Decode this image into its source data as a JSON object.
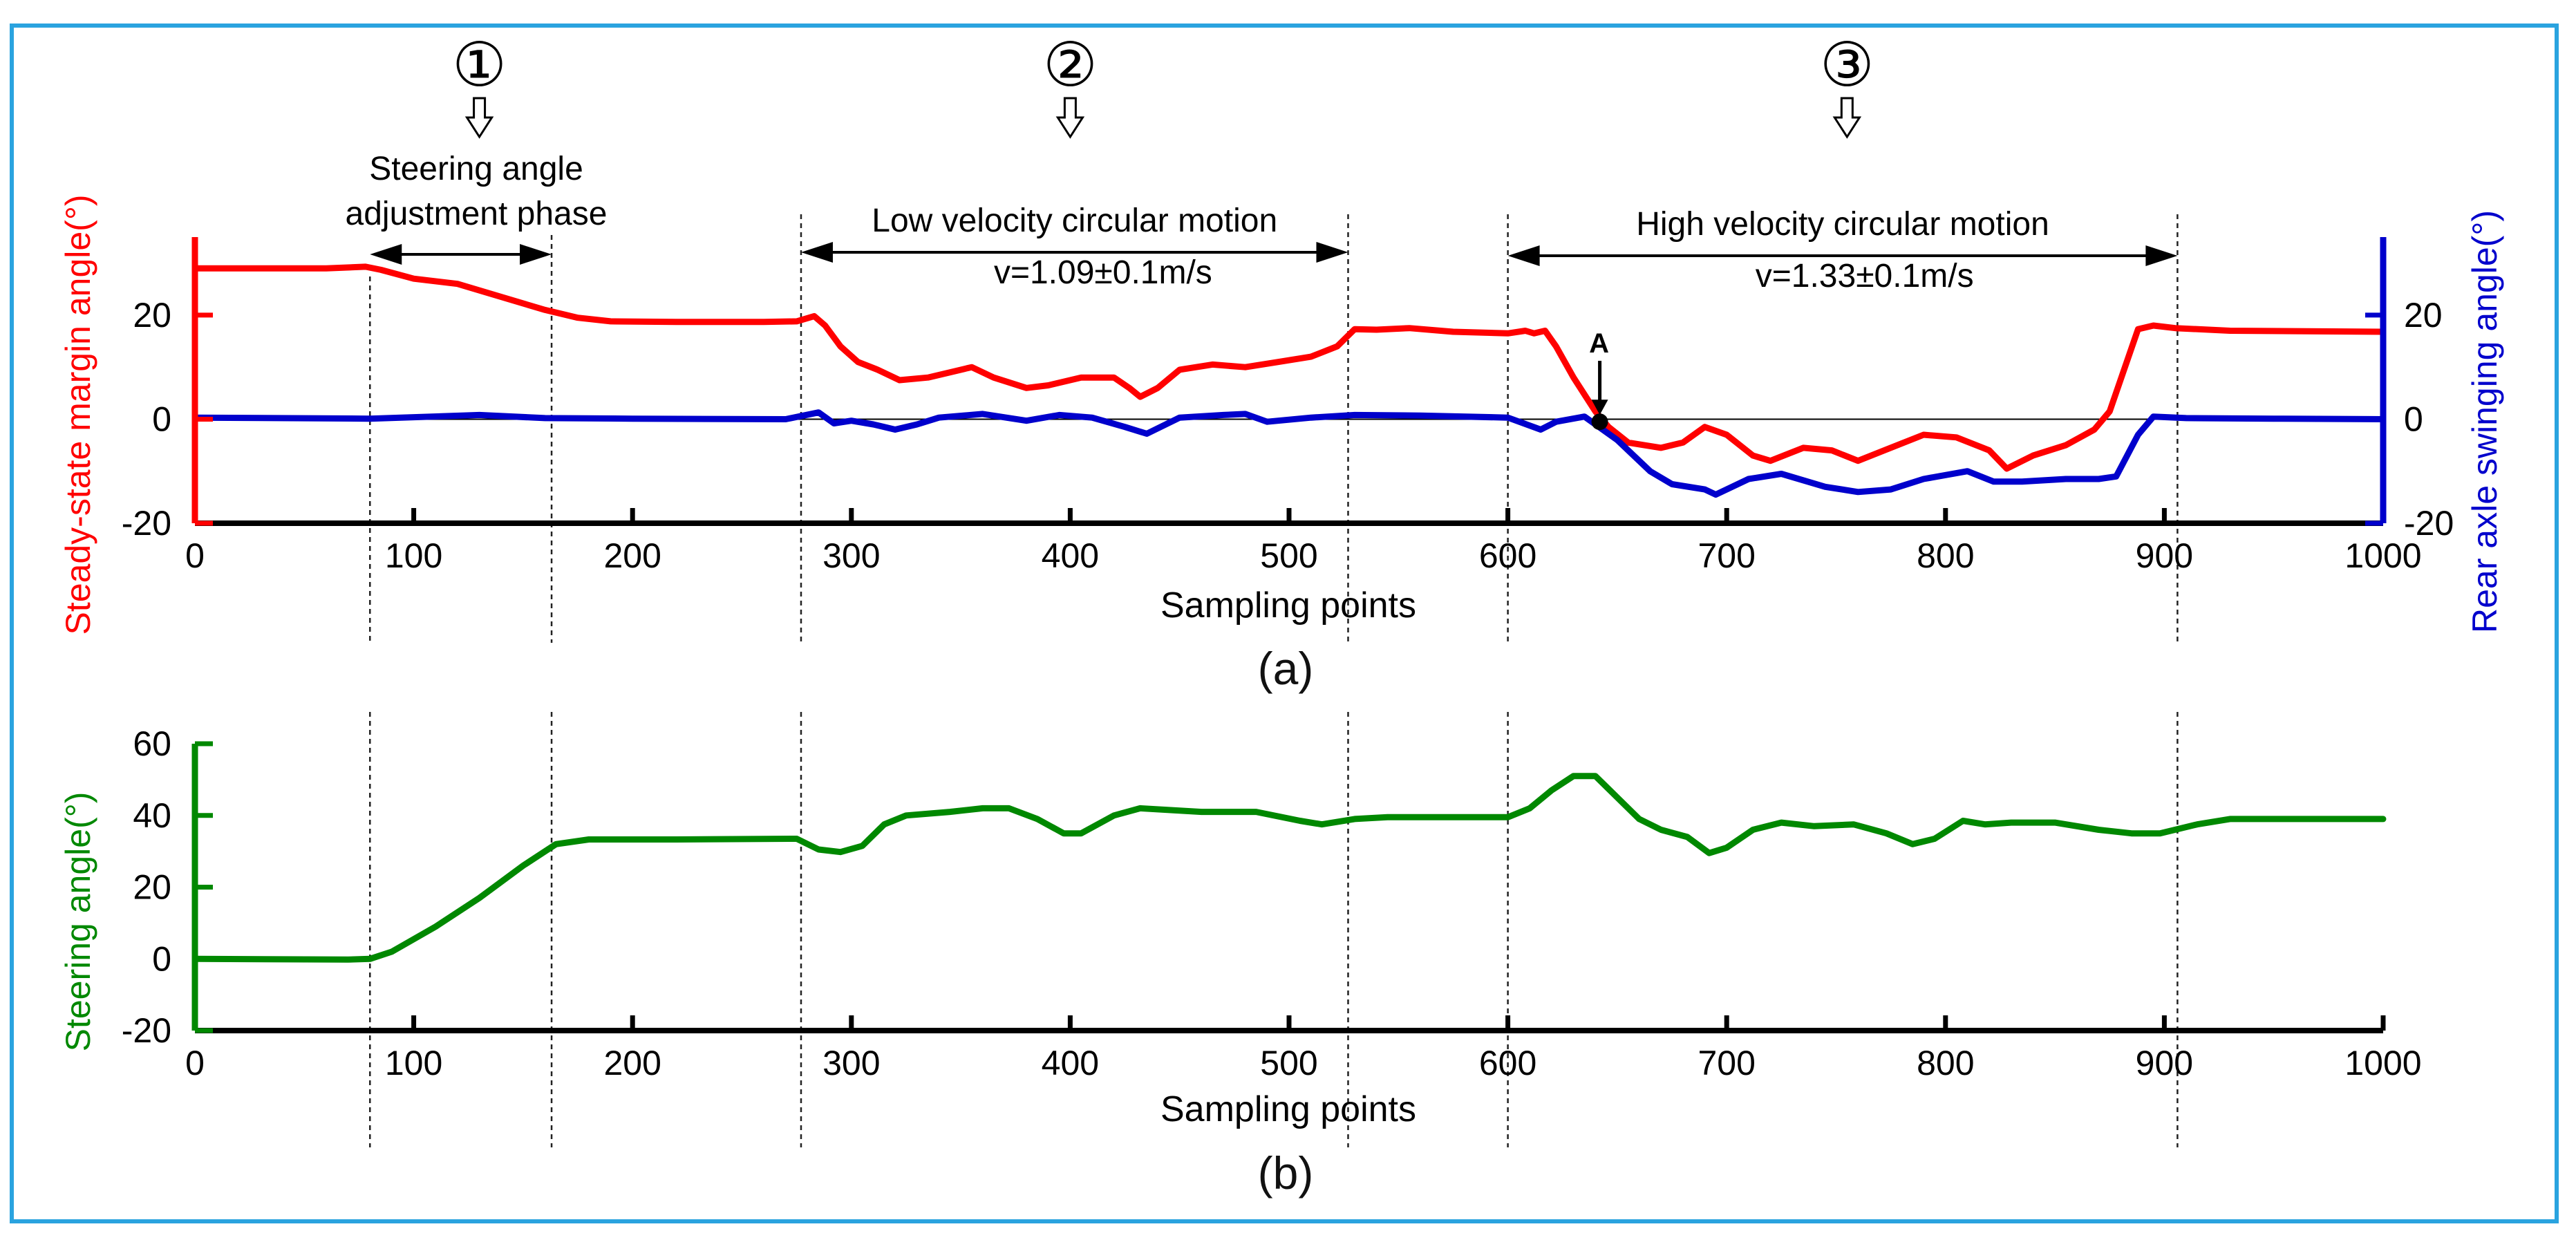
{
  "chart_data": [
    {
      "type": "line",
      "panel": "(a)",
      "xlabel": "Sampling points",
      "xlim": [
        0,
        1000
      ],
      "x_ticks": [
        0,
        100,
        200,
        300,
        400,
        500,
        600,
        700,
        800,
        900,
        1000
      ],
      "left_axis": {
        "label": "Steady-state margin angle(°)",
        "ylim": [
          -20,
          35
        ],
        "ticks": [
          -20,
          0,
          20
        ],
        "color": "#ff0000"
      },
      "right_axis": {
        "label": "Rear axle swinging angle(°)",
        "ylim": [
          -20,
          35
        ],
        "ticks": [
          -20,
          0,
          20
        ],
        "color": "#0000cc"
      },
      "series": [
        {
          "name": "Steady-state margin angle",
          "axis": "left",
          "color": "#ff0000",
          "points": [
            [
              0,
              29
            ],
            [
              60,
              29
            ],
            [
              78,
              29.3
            ],
            [
              85,
              28.7
            ],
            [
              100,
              27
            ],
            [
              120,
              26
            ],
            [
              140,
              23.5
            ],
            [
              160,
              21
            ],
            [
              175,
              19.5
            ],
            [
              190,
              18.8
            ],
            [
              220,
              18.7
            ],
            [
              260,
              18.7
            ],
            [
              275,
              18.8
            ],
            [
              283,
              19.8
            ],
            [
              288,
              18
            ],
            [
              295,
              14
            ],
            [
              303,
              11
            ],
            [
              312,
              9.5
            ],
            [
              322,
              7.5
            ],
            [
              335,
              8
            ],
            [
              345,
              9
            ],
            [
              355,
              10
            ],
            [
              365,
              8
            ],
            [
              380,
              6
            ],
            [
              390,
              6.5
            ],
            [
              405,
              8
            ],
            [
              420,
              8
            ],
            [
              427,
              6
            ],
            [
              432,
              4.3
            ],
            [
              440,
              6
            ],
            [
              450,
              9.5
            ],
            [
              465,
              10.5
            ],
            [
              480,
              10
            ],
            [
              495,
              11
            ],
            [
              510,
              12
            ],
            [
              522,
              14
            ],
            [
              530,
              17.3
            ],
            [
              540,
              17.2
            ],
            [
              555,
              17.5
            ],
            [
              575,
              16.8
            ],
            [
              600,
              16.5
            ],
            [
              608,
              17
            ],
            [
              612,
              16.5
            ],
            [
              617,
              17
            ],
            [
              622,
              14
            ],
            [
              630,
              8
            ],
            [
              640,
              1.5
            ],
            [
              646,
              -1.5
            ],
            [
              655,
              -4.5
            ],
            [
              670,
              -5.5
            ],
            [
              680,
              -4.5
            ],
            [
              690,
              -1.5
            ],
            [
              700,
              -3
            ],
            [
              712,
              -7
            ],
            [
              720,
              -8
            ],
            [
              735,
              -5.5
            ],
            [
              748,
              -6
            ],
            [
              760,
              -8
            ],
            [
              772,
              -6
            ],
            [
              790,
              -3
            ],
            [
              805,
              -3.5
            ],
            [
              820,
              -6
            ],
            [
              828,
              -9.5
            ],
            [
              840,
              -7
            ],
            [
              855,
              -5
            ],
            [
              868,
              -2
            ],
            [
              875,
              1.5
            ],
            [
              882,
              10
            ],
            [
              888,
              17.3
            ],
            [
              895,
              18
            ],
            [
              905,
              17.5
            ],
            [
              930,
              17
            ],
            [
              1000,
              16.8
            ]
          ]
        },
        {
          "name": "Rear axle swinging angle",
          "axis": "right",
          "color": "#0000cc",
          "points": [
            [
              0,
              0.3
            ],
            [
              80,
              0.1
            ],
            [
              130,
              0.8
            ],
            [
              160,
              0.2
            ],
            [
              200,
              0.1
            ],
            [
              270,
              0
            ],
            [
              285,
              1.3
            ],
            [
              292,
              -0.8
            ],
            [
              300,
              -0.3
            ],
            [
              310,
              -1
            ],
            [
              320,
              -2
            ],
            [
              330,
              -1
            ],
            [
              340,
              0.3
            ],
            [
              360,
              1
            ],
            [
              380,
              -0.3
            ],
            [
              395,
              0.8
            ],
            [
              410,
              0.3
            ],
            [
              425,
              -1.5
            ],
            [
              435,
              -2.8
            ],
            [
              450,
              0.3
            ],
            [
              470,
              0.8
            ],
            [
              480,
              1
            ],
            [
              490,
              -0.5
            ],
            [
              510,
              0.3
            ],
            [
              530,
              0.8
            ],
            [
              560,
              0.7
            ],
            [
              600,
              0.3
            ],
            [
              615,
              -2
            ],
            [
              622,
              -0.5
            ],
            [
              635,
              0.5
            ],
            [
              650,
              -4
            ],
            [
              665,
              -10
            ],
            [
              675,
              -12.5
            ],
            [
              690,
              -13.5
            ],
            [
              695,
              -14.5
            ],
            [
              710,
              -11.5
            ],
            [
              725,
              -10.5
            ],
            [
              745,
              -13
            ],
            [
              760,
              -14
            ],
            [
              775,
              -13.5
            ],
            [
              790,
              -11.5
            ],
            [
              810,
              -10
            ],
            [
              822,
              -12
            ],
            [
              835,
              -12
            ],
            [
              855,
              -11.5
            ],
            [
              870,
              -11.5
            ],
            [
              878,
              -11
            ],
            [
              888,
              -3
            ],
            [
              895,
              0.5
            ],
            [
              910,
              0.2
            ],
            [
              950,
              0.1
            ],
            [
              1000,
              0
            ]
          ]
        }
      ],
      "reference_line_y": 0,
      "phase_dividers_x": [
        80,
        163,
        277,
        527,
        600,
        906
      ],
      "phase_markers": [
        {
          "number": "①",
          "x": 130
        },
        {
          "number": "②",
          "x": 400
        },
        {
          "number": "③",
          "x": 755
        }
      ],
      "phase_labels": [
        {
          "line1": "Steering angle",
          "line2": "adjustment phase",
          "arrow": [
            80,
            163
          ]
        },
        {
          "line1": "Low velocity circular motion",
          "line2": "v=1.09±0.1m/s",
          "arrow": [
            277,
            527
          ]
        },
        {
          "line1": "High velocity circular motion",
          "line2": "v=1.33±0.1m/s",
          "arrow": [
            600,
            906
          ]
        }
      ],
      "annotation": {
        "text": "A",
        "x": 642,
        "y": -0.5
      }
    },
    {
      "type": "line",
      "panel": "(b)",
      "xlabel": "Sampling points",
      "xlim": [
        0,
        1000
      ],
      "x_ticks": [
        0,
        100,
        200,
        300,
        400,
        500,
        600,
        700,
        800,
        900,
        1000
      ],
      "left_axis": {
        "label": "Steering angle(°)",
        "ylim": [
          -20,
          60
        ],
        "ticks": [
          -20,
          0,
          20,
          40,
          60
        ],
        "color": "#008800"
      },
      "series": [
        {
          "name": "Steering angle",
          "axis": "left",
          "color": "#008800",
          "points": [
            [
              0,
              0
            ],
            [
              70,
              -0.2
            ],
            [
              80,
              0
            ],
            [
              90,
              2
            ],
            [
              110,
              9
            ],
            [
              130,
              17
            ],
            [
              150,
              26
            ],
            [
              165,
              32
            ],
            [
              180,
              33.3
            ],
            [
              220,
              33.3
            ],
            [
              275,
              33.5
            ],
            [
              285,
              30.5
            ],
            [
              295,
              29.8
            ],
            [
              305,
              31.5
            ],
            [
              315,
              37.5
            ],
            [
              325,
              40
            ],
            [
              345,
              41
            ],
            [
              360,
              42
            ],
            [
              372,
              42
            ],
            [
              385,
              39
            ],
            [
              397,
              35
            ],
            [
              405,
              35
            ],
            [
              420,
              40
            ],
            [
              432,
              42
            ],
            [
              460,
              41
            ],
            [
              485,
              41
            ],
            [
              505,
              38.5
            ],
            [
              515,
              37.5
            ],
            [
              530,
              39
            ],
            [
              545,
              39.5
            ],
            [
              600,
              39.5
            ],
            [
              610,
              42
            ],
            [
              620,
              47
            ],
            [
              630,
              51
            ],
            [
              640,
              51
            ],
            [
              650,
              45
            ],
            [
              660,
              39
            ],
            [
              670,
              36
            ],
            [
              682,
              34
            ],
            [
              692,
              29.5
            ],
            [
              700,
              31
            ],
            [
              712,
              36
            ],
            [
              725,
              38
            ],
            [
              740,
              37
            ],
            [
              758,
              37.5
            ],
            [
              773,
              35
            ],
            [
              785,
              32
            ],
            [
              795,
              33.5
            ],
            [
              808,
              38.5
            ],
            [
              818,
              37.5
            ],
            [
              830,
              38
            ],
            [
              850,
              38
            ],
            [
              870,
              36
            ],
            [
              885,
              35
            ],
            [
              898,
              35
            ],
            [
              915,
              37.5
            ],
            [
              930,
              39
            ],
            [
              1000,
              39
            ]
          ]
        }
      ],
      "phase_dividers_x": [
        80,
        163,
        277,
        527,
        600,
        906
      ]
    }
  ],
  "captions": {
    "a": "(a)",
    "b": "(b)"
  }
}
